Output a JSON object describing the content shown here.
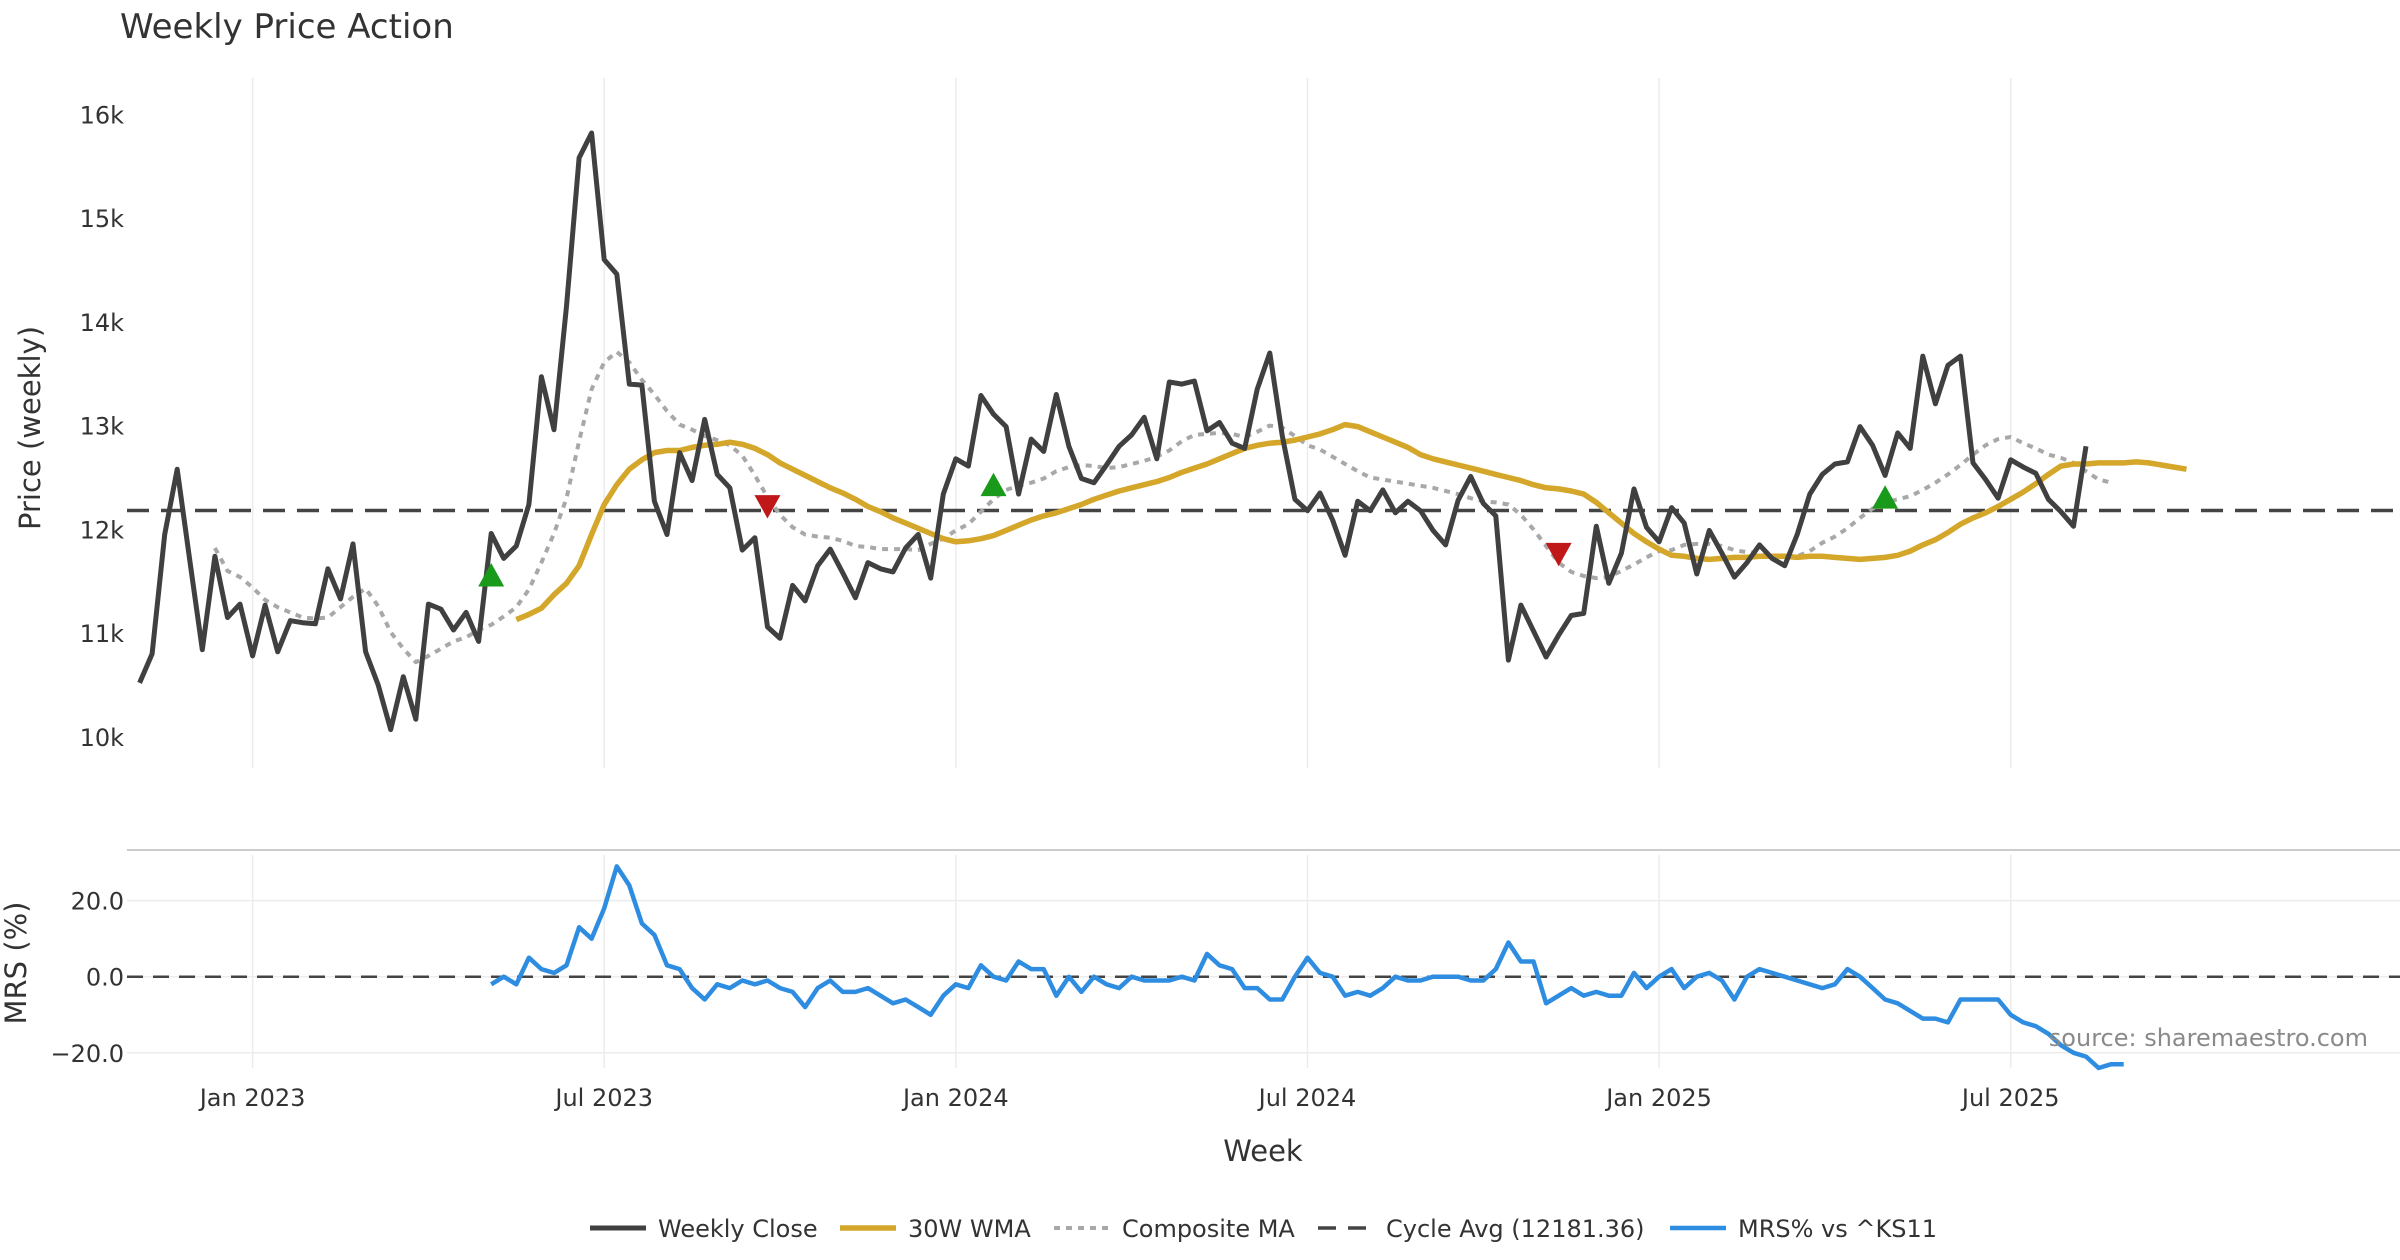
{
  "chart_data": {
    "type": "line",
    "title": "Weekly Price Action",
    "xlabel": "Week",
    "ylabel_top": "Price (weekly)",
    "ylabel_bottom": "MRS (%)",
    "source": "source: sharemaestro.com",
    "x_ticks": [
      "Jan 2023",
      "Jul 2023",
      "Jan 2024",
      "Jul 2024",
      "Jan 2025",
      "Jul 2025"
    ],
    "y_ticks_top": [
      "10k",
      "11k",
      "12k",
      "13k",
      "14k",
      "15k",
      "16k"
    ],
    "y_ticks_top_values": [
      10000,
      11000,
      12000,
      13000,
      14000,
      15000,
      16000
    ],
    "y_ticks_bottom": [
      "20.0",
      "0.0",
      "−20.0"
    ],
    "y_ticks_bottom_values": [
      20,
      0,
      -20
    ],
    "ylim_top": [
      9700,
      16350
    ],
    "ylim_bottom": [
      -24,
      32
    ],
    "xlim": [
      -1,
      180
    ],
    "x_tick_index": [
      9,
      37,
      65,
      93,
      121,
      149
    ],
    "colors": {
      "close": "#404040",
      "wma": "#d4a62a",
      "composite": "#a8a8a8",
      "cycle": "#444444",
      "mrs": "#2e8de0",
      "buy": "#1a9a1a",
      "sell": "#c01818",
      "grid": "#ececec"
    },
    "cycle_avg": 12181.36,
    "series": [
      {
        "name": "Weekly Close",
        "values": [
          10520,
          10800,
          11950,
          12580,
          11700,
          10840,
          11740,
          11150,
          11280,
          10780,
          11270,
          10820,
          11120,
          11100,
          11090,
          11620,
          11330,
          11860,
          10820,
          10500,
          10070,
          10580,
          10170,
          11280,
          11230,
          11030,
          11200,
          10920,
          11960,
          11720,
          11840,
          12240,
          13470,
          12960,
          14150,
          15580,
          15820,
          14600,
          14460,
          13400,
          13390,
          12270,
          11950,
          12740,
          12470,
          13060,
          12530,
          12400,
          11800,
          11920,
          11060,
          10950,
          11460,
          11310,
          11650,
          11810,
          11580,
          11340,
          11680,
          11620,
          11590,
          11820,
          11950,
          11530,
          12340,
          12680,
          12610,
          13290,
          13110,
          12990,
          12340,
          12870,
          12750,
          13300,
          12800,
          12490,
          12450,
          12620,
          12800,
          12910,
          13080,
          12680,
          13420,
          13400,
          13430,
          12950,
          13030,
          12830,
          12780,
          13350,
          13700,
          12900,
          12290,
          12180,
          12350,
          12090,
          11750,
          12270,
          12180,
          12380,
          12160,
          12270,
          12180,
          11990,
          11850,
          12280,
          12510,
          12250,
          12130,
          10740,
          11270,
          11020,
          10770,
          10980,
          11170,
          11190,
          12030,
          11480,
          11770,
          12390,
          12020,
          11880,
          12210,
          12060,
          11570,
          11990,
          11770,
          11540,
          11680,
          11850,
          11720,
          11650,
          11950,
          12340,
          12530,
          12630,
          12650,
          12990,
          12810,
          12520,
          12930,
          12780,
          13670,
          13210,
          13580,
          13670,
          12640,
          12480,
          12300,
          12670,
          12600,
          12540,
          12290,
          12170,
          12030,
          12800
        ]
      },
      {
        "name": "30W WMA",
        "values": [
          null,
          null,
          null,
          null,
          null,
          null,
          null,
          null,
          null,
          null,
          null,
          null,
          null,
          null,
          null,
          null,
          null,
          null,
          null,
          null,
          null,
          null,
          null,
          null,
          null,
          null,
          null,
          null,
          null,
          null,
          11130,
          11180,
          11240,
          11370,
          11480,
          11650,
          11950,
          12240,
          12430,
          12580,
          12670,
          12740,
          12760,
          12760,
          12790,
          12810,
          12820,
          12840,
          12820,
          12780,
          12720,
          12640,
          12580,
          12520,
          12460,
          12400,
          12350,
          12290,
          12220,
          12170,
          12110,
          12060,
          12010,
          11960,
          11910,
          11880,
          11890,
          11910,
          11940,
          11990,
          12040,
          12090,
          12130,
          12160,
          12200,
          12240,
          12290,
          12330,
          12370,
          12400,
          12430,
          12460,
          12500,
          12550,
          12590,
          12630,
          12680,
          12730,
          12780,
          12810,
          12830,
          12840,
          12860,
          12890,
          12920,
          12960,
          13010,
          12990,
          12940,
          12890,
          12840,
          12790,
          12720,
          12680,
          12650,
          12620,
          12590,
          12560,
          12530,
          12500,
          12470,
          12430,
          12400,
          12390,
          12370,
          12340,
          12260,
          12160,
          12060,
          11960,
          11880,
          11810,
          11750,
          11740,
          11720,
          11710,
          11720,
          11730,
          11730,
          11740,
          11740,
          11740,
          11730,
          11740,
          11740,
          11730,
          11720,
          11710,
          11720,
          11730,
          11750,
          11790,
          11850,
          11900,
          11970,
          12050,
          12110,
          12160,
          12220,
          12290,
          12360,
          12440,
          12530,
          12610,
          12630,
          12630,
          12640,
          12640,
          12640,
          12650,
          12640,
          12620,
          12600,
          12580
        ]
      },
      {
        "name": "Composite MA",
        "values": [
          null,
          null,
          null,
          null,
          null,
          null,
          11820,
          11600,
          11540,
          11440,
          11320,
          11250,
          11200,
          11150,
          11140,
          11150,
          11250,
          11350,
          11430,
          11260,
          11010,
          10850,
          10720,
          10780,
          10850,
          10920,
          10960,
          11030,
          11080,
          11160,
          11250,
          11420,
          11680,
          11960,
          12300,
          12850,
          13350,
          13610,
          13710,
          13610,
          13440,
          13300,
          13140,
          13010,
          12960,
          12900,
          12860,
          12810,
          12710,
          12520,
          12310,
          12140,
          12020,
          11950,
          11930,
          11920,
          11890,
          11840,
          11830,
          11810,
          11810,
          11810,
          11800,
          11860,
          11910,
          11990,
          12050,
          12170,
          12290,
          12380,
          12420,
          12450,
          12490,
          12560,
          12600,
          12620,
          12610,
          12590,
          12600,
          12630,
          12660,
          12700,
          12760,
          12850,
          12910,
          12920,
          12930,
          12920,
          12890,
          12940,
          13000,
          12980,
          12900,
          12810,
          12770,
          12700,
          12630,
          12560,
          12500,
          12480,
          12460,
          12440,
          12420,
          12400,
          12370,
          12340,
          12300,
          12270,
          12260,
          12240,
          12140,
          12000,
          11840,
          11680,
          11590,
          11550,
          11530,
          11540,
          11600,
          11660,
          11730,
          11790,
          11800,
          11850,
          11860,
          11860,
          11840,
          11800,
          11780,
          11770,
          11750,
          11740,
          11740,
          11790,
          11870,
          11930,
          12010,
          12110,
          12200,
          12260,
          12290,
          12320,
          12380,
          12450,
          12530,
          12620,
          12720,
          12810,
          12870,
          12890,
          12830,
          12780,
          12720,
          12690,
          12640,
          12560,
          12480,
          12450
        ]
      },
      {
        "name": "MRS% vs ^KS11",
        "values": [
          null,
          null,
          null,
          null,
          null,
          null,
          null,
          null,
          null,
          null,
          null,
          null,
          null,
          null,
          null,
          null,
          null,
          null,
          null,
          null,
          null,
          null,
          null,
          null,
          null,
          null,
          null,
          null,
          -2,
          0,
          -2,
          5,
          2,
          1,
          3,
          13,
          10,
          18,
          29,
          24,
          14,
          11,
          3,
          2,
          -3,
          -6,
          -2,
          -3,
          -1,
          -2,
          -1,
          -3,
          -4,
          -8,
          -3,
          -1,
          -4,
          -4,
          -3,
          -5,
          -7,
          -6,
          -8,
          -10,
          -5,
          -2,
          -3,
          3,
          0,
          -1,
          4,
          2,
          2,
          -5,
          0,
          -4,
          0,
          -2,
          -3,
          0,
          -1,
          -1,
          -1,
          0,
          -1,
          6,
          3,
          2,
          -3,
          -3,
          -6,
          -6,
          0,
          5,
          1,
          0,
          -5,
          -4,
          -5,
          -3,
          0,
          -1,
          -1,
          0,
          0,
          0,
          -1,
          -1,
          2,
          9,
          4,
          4,
          -7,
          -5,
          -3,
          -5,
          -4,
          -5,
          -5,
          1,
          -3,
          0,
          2,
          -3,
          0,
          1,
          -1,
          -6,
          0,
          2,
          1,
          0,
          -1,
          -2,
          -3,
          -2,
          2,
          0,
          -3,
          -6,
          -7,
          -9,
          -11,
          -11,
          -12,
          -6,
          -6,
          -6,
          -6,
          -10,
          -12,
          -13,
          -15,
          -18,
          -20,
          -21,
          -24,
          -23,
          -23
        ]
      }
    ],
    "buy_signals": [
      {
        "x": 28,
        "y": 11550
      },
      {
        "x": 68,
        "y": 12420
      },
      {
        "x": 139,
        "y": 12300
      }
    ],
    "sell_signals": [
      {
        "x": 50,
        "y": 12230
      },
      {
        "x": 113,
        "y": 11770
      }
    ],
    "legend": [
      "Weekly Close",
      "30W WMA",
      "Composite MA",
      "Cycle Avg (12181.36)",
      "MRS% vs ^KS11"
    ],
    "legend_position": "bottom-center"
  }
}
